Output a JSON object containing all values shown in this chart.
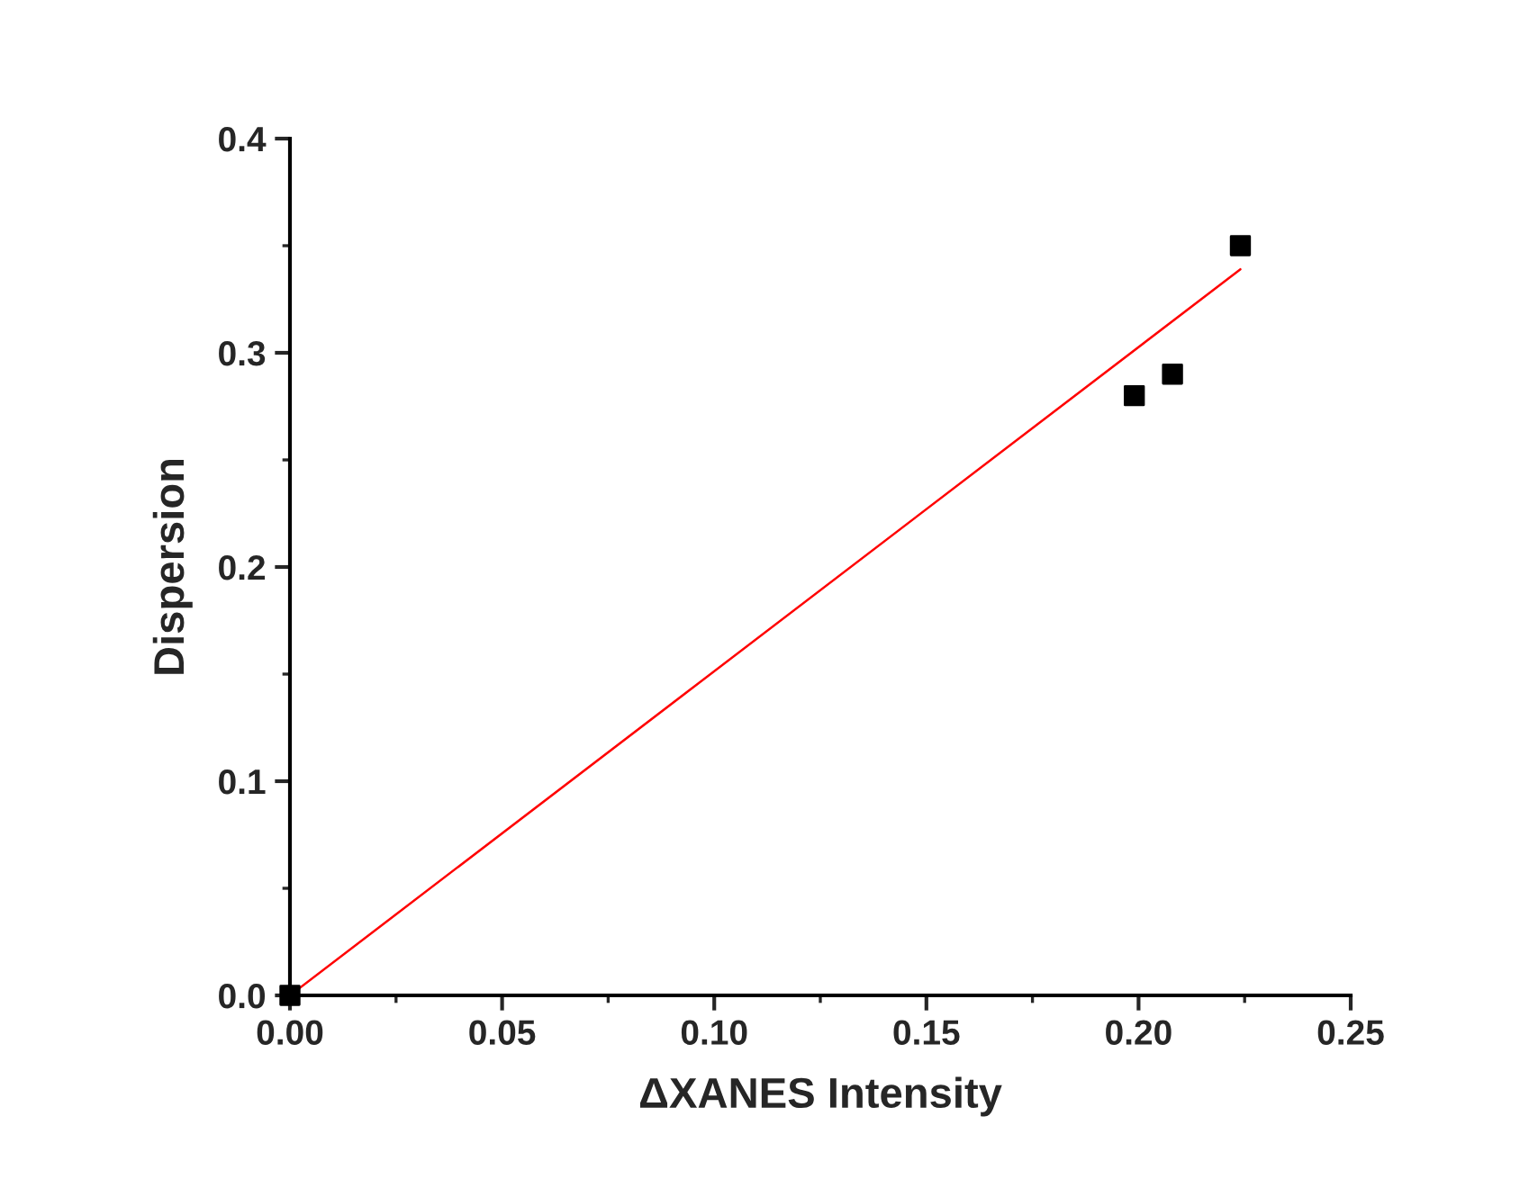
{
  "chart_data": {
    "type": "scatter",
    "xlabel": "ΔXANES Intensity",
    "ylabel": "Dispersion",
    "xlim": [
      0,
      0.25
    ],
    "ylim": [
      0,
      0.4
    ],
    "xticks": [
      {
        "value": 0,
        "label": "0.00"
      },
      {
        "value": 0.05,
        "label": "0.05"
      },
      {
        "value": 0.1,
        "label": "0.10"
      },
      {
        "value": 0.15,
        "label": "0.15"
      },
      {
        "value": 0.2,
        "label": "0.20"
      },
      {
        "value": 0.25,
        "label": "0.25"
      }
    ],
    "yticks": [
      {
        "value": 0,
        "label": "0.0"
      },
      {
        "value": 0.1,
        "label": "0.1"
      },
      {
        "value": 0.2,
        "label": "0.2"
      },
      {
        "value": 0.3,
        "label": "0.3"
      },
      {
        "value": 0.4,
        "label": "0.4"
      }
    ],
    "grid": false,
    "legend": false,
    "marker": "square",
    "series": [
      {
        "color": "#000000",
        "x": [
          0,
          0.199,
          0.208,
          0.224
        ],
        "values": [
          0,
          0.28,
          0.29,
          0.35
        ]
      },
      {
        "type": "line",
        "color": "#ff0000",
        "x": [
          0,
          0.224
        ],
        "values": [
          0,
          0.339
        ],
        "marker": "none"
      }
    ]
  }
}
